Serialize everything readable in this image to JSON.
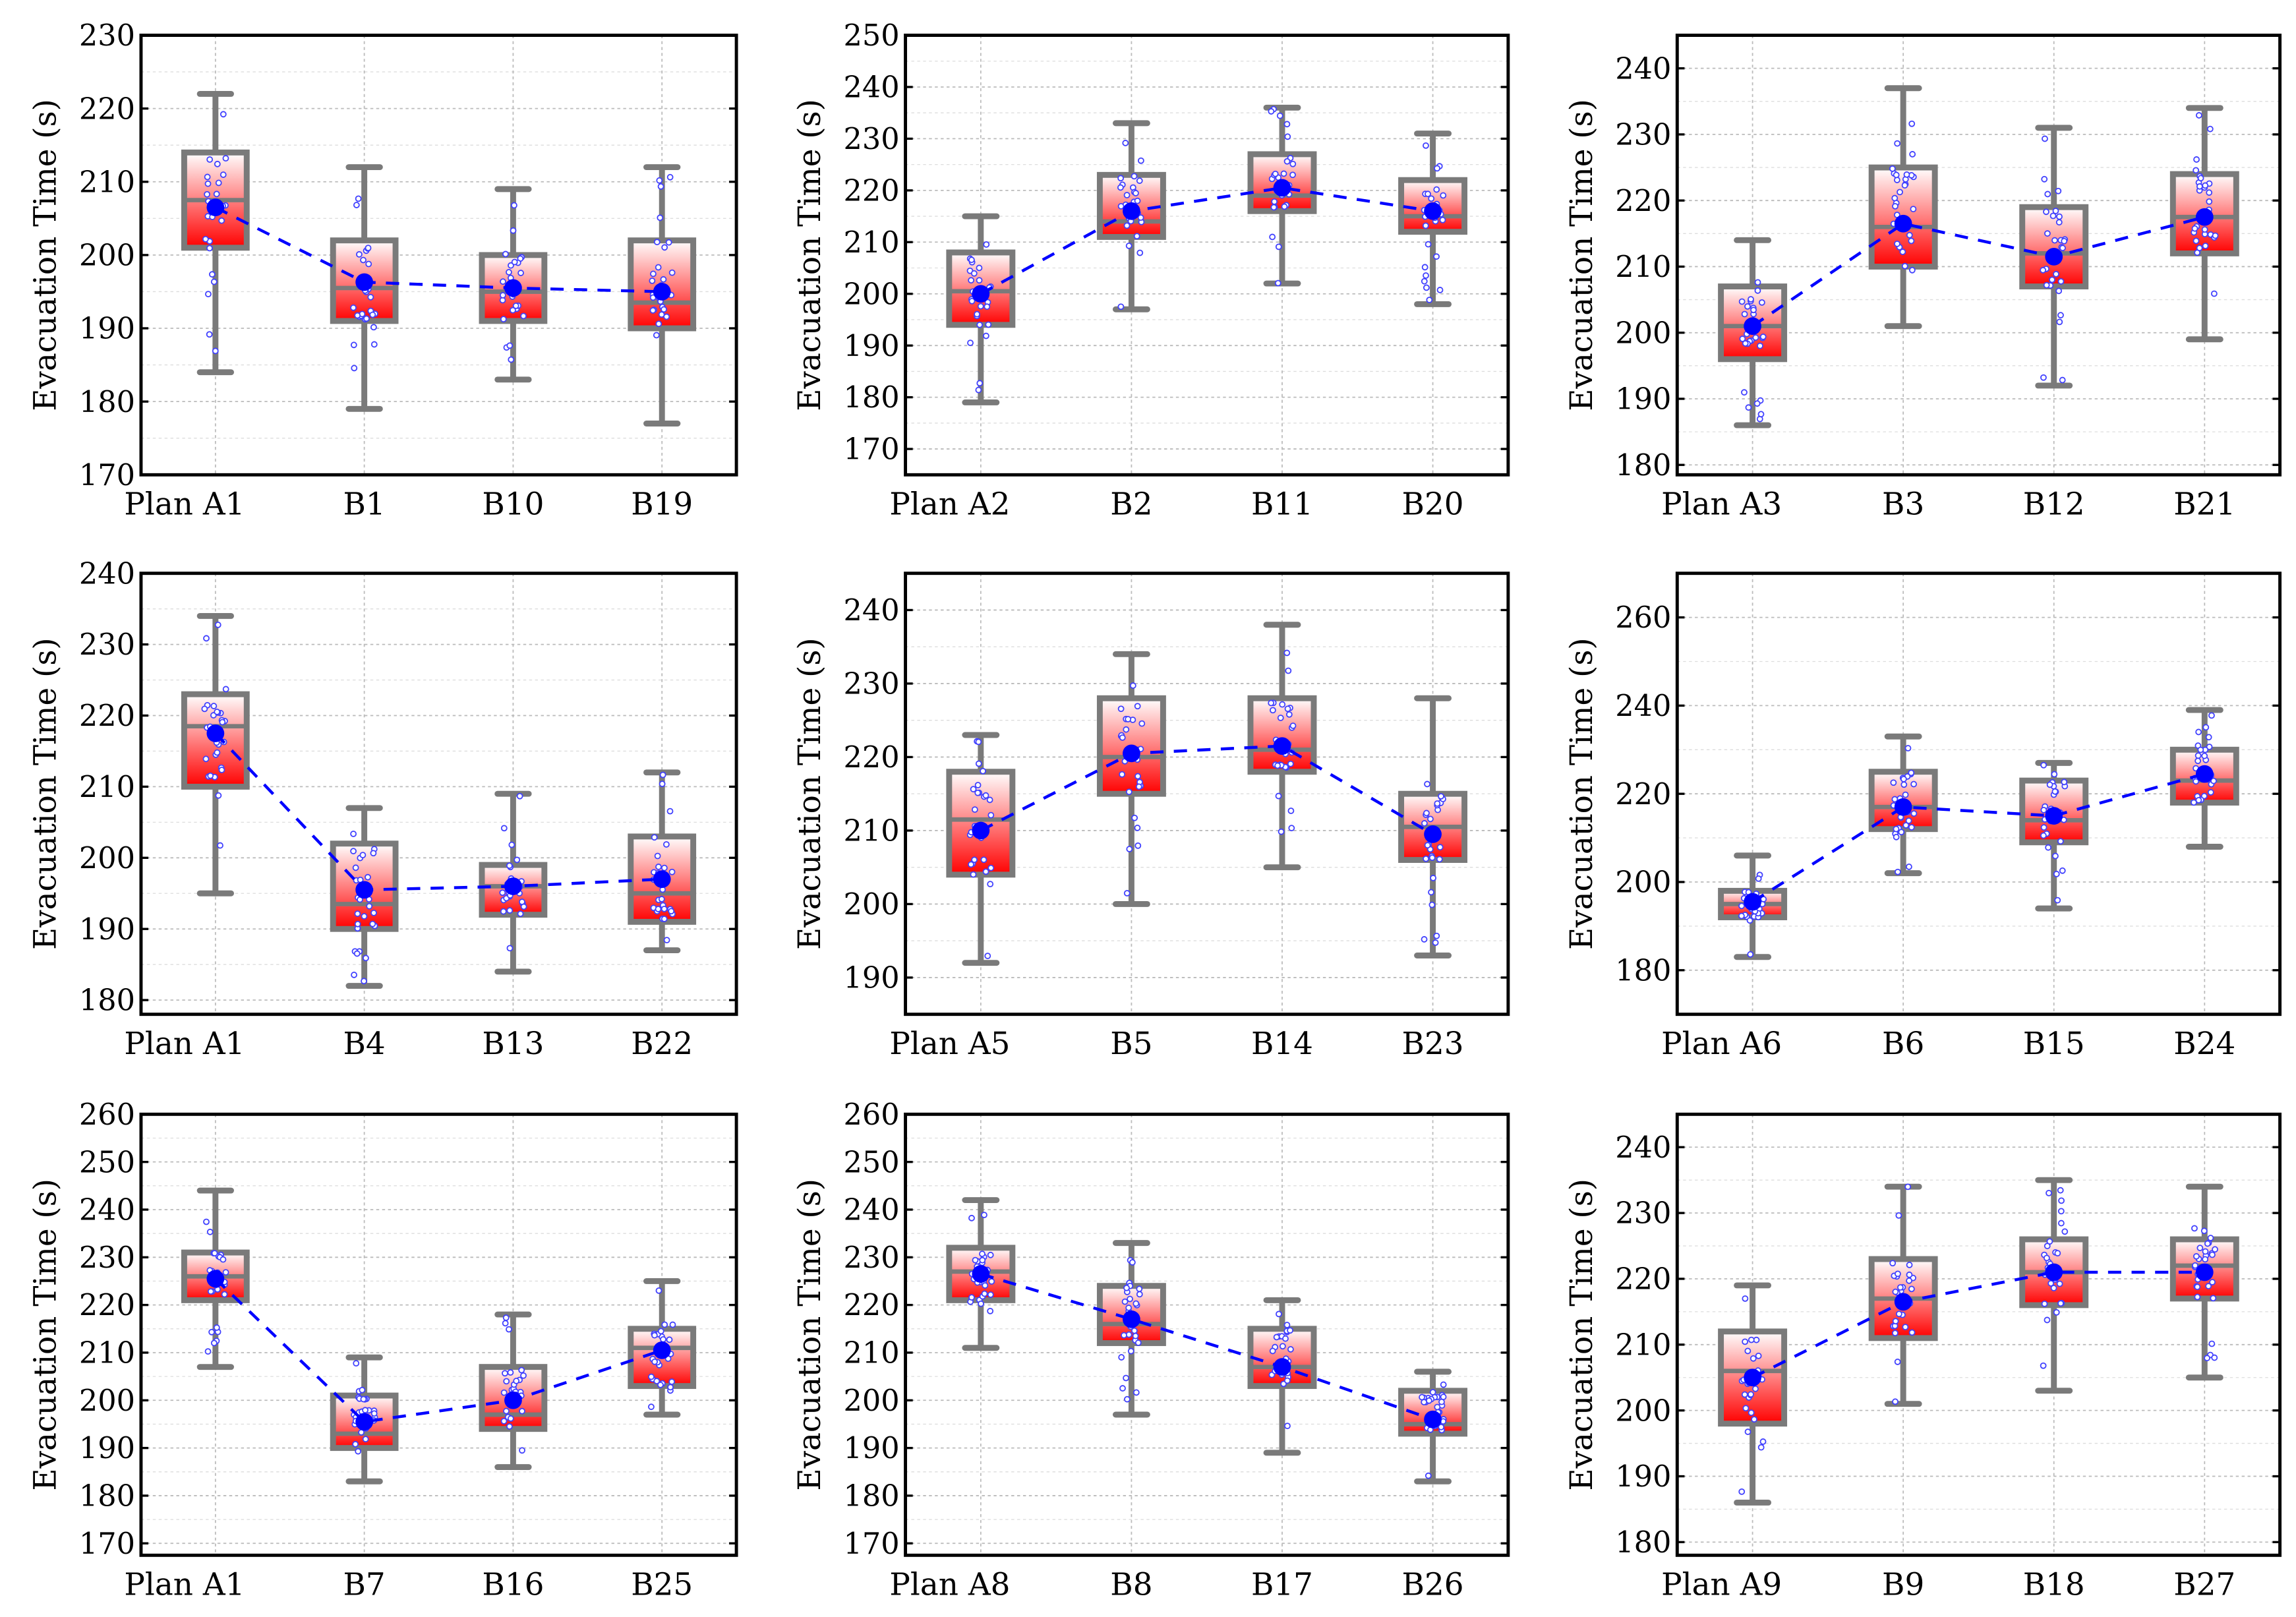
{
  "chart_data": [
    {
      "type": "box",
      "ylabel": "Evacuation Time (s)",
      "categories": [
        "Plan  A1",
        "B1",
        "B10",
        "B19"
      ],
      "ylim": [
        170,
        230
      ],
      "yticks": [
        170,
        180,
        190,
        200,
        210,
        220,
        230
      ],
      "boxes": [
        {
          "min": 184,
          "q1": 201,
          "median": 207.5,
          "q3": 214,
          "max": 222,
          "mean": 206.5
        },
        {
          "min": 179,
          "q1": 191,
          "median": 195.5,
          "q3": 202,
          "max": 212,
          "mean": 196.3
        },
        {
          "min": 183,
          "q1": 191,
          "median": 195,
          "q3": 200,
          "max": 209,
          "mean": 195.5
        },
        {
          "min": 177,
          "q1": 190,
          "median": 193.5,
          "q3": 202,
          "max": 212,
          "mean": 195
        }
      ]
    },
    {
      "type": "box",
      "ylabel": "Evacuation Time (s)",
      "categories": [
        "Plan A2",
        "B2",
        "B11",
        "B20"
      ],
      "ylim": [
        165,
        250
      ],
      "yticks": [
        170,
        180,
        190,
        200,
        210,
        220,
        230,
        240,
        250
      ],
      "boxes": [
        {
          "min": 179,
          "q1": 194,
          "median": 200.5,
          "q3": 208,
          "max": 215,
          "mean": 200
        },
        {
          "min": 197,
          "q1": 211,
          "median": 214,
          "q3": 223,
          "max": 233,
          "mean": 216
        },
        {
          "min": 202,
          "q1": 216,
          "median": 219,
          "q3": 227,
          "max": 236,
          "mean": 220.5
        },
        {
          "min": 198,
          "q1": 212,
          "median": 215,
          "q3": 222,
          "max": 231,
          "mean": 216
        }
      ]
    },
    {
      "type": "box",
      "ylabel": "Evacuation Time (s)",
      "categories": [
        "Plan A3",
        "B3",
        "B12",
        "B21"
      ],
      "ylim": [
        178.5,
        245
      ],
      "yticks": [
        180,
        190,
        200,
        210,
        220,
        230,
        240
      ],
      "boxes": [
        {
          "min": 186,
          "q1": 196,
          "median": 201,
          "q3": 207,
          "max": 214,
          "mean": 201
        },
        {
          "min": 201,
          "q1": 210,
          "median": 216,
          "q3": 225,
          "max": 237,
          "mean": 216.5
        },
        {
          "min": 192,
          "q1": 207,
          "median": 212,
          "q3": 219,
          "max": 231,
          "mean": 211.5
        },
        {
          "min": 199,
          "q1": 212,
          "median": 217.5,
          "q3": 224,
          "max": 234,
          "mean": 217.5
        }
      ]
    },
    {
      "type": "box",
      "ylabel": "Evacuation Time (s)",
      "categories": [
        "Plan  A1",
        "B4",
        "B13",
        "B22"
      ],
      "ylim": [
        178,
        240
      ],
      "yticks": [
        180,
        190,
        200,
        210,
        220,
        230,
        240
      ],
      "boxes": [
        {
          "min": 195,
          "q1": 210,
          "median": 218.5,
          "q3": 223,
          "max": 234,
          "mean": 217.5
        },
        {
          "min": 182,
          "q1": 190,
          "median": 193.5,
          "q3": 202,
          "max": 207,
          "mean": 195.5
        },
        {
          "min": 184,
          "q1": 192,
          "median": 196,
          "q3": 199,
          "max": 209,
          "mean": 196
        },
        {
          "min": 187,
          "q1": 191,
          "median": 195,
          "q3": 203,
          "max": 212,
          "mean": 197
        }
      ]
    },
    {
      "type": "box",
      "ylabel": "Evacuation Time (s)",
      "categories": [
        "Plan A5",
        "B5",
        "B14",
        "B23"
      ],
      "ylim": [
        185,
        245
      ],
      "yticks": [
        190,
        200,
        210,
        220,
        230,
        240
      ],
      "boxes": [
        {
          "min": 192,
          "q1": 204,
          "median": 211.5,
          "q3": 218,
          "max": 223,
          "mean": 210
        },
        {
          "min": 200,
          "q1": 215,
          "median": 220,
          "q3": 228,
          "max": 234,
          "mean": 220.5
        },
        {
          "min": 205,
          "q1": 218,
          "median": 221,
          "q3": 228,
          "max": 238,
          "mean": 221.5
        },
        {
          "min": 193,
          "q1": 206,
          "median": 210.5,
          "q3": 215,
          "max": 228,
          "mean": 209.5
        }
      ]
    },
    {
      "type": "box",
      "ylabel": "Evacuation Time (s)",
      "categories": [
        "Plan A6",
        "B6",
        "B15",
        "B24"
      ],
      "ylim": [
        170,
        270
      ],
      "yticks": [
        180,
        200,
        220,
        240,
        260
      ],
      "boxes": [
        {
          "min": 183,
          "q1": 192,
          "median": 195,
          "q3": 198,
          "max": 206,
          "mean": 195.5
        },
        {
          "min": 202,
          "q1": 212,
          "median": 217,
          "q3": 225,
          "max": 233,
          "mean": 217
        },
        {
          "min": 194,
          "q1": 209,
          "median": 214,
          "q3": 223,
          "max": 227,
          "mean": 215
        },
        {
          "min": 208,
          "q1": 218,
          "median": 223,
          "q3": 230,
          "max": 239,
          "mean": 224.5
        }
      ]
    },
    {
      "type": "box",
      "ylabel": "Evacuation Time (s)",
      "categories": [
        "Plan  A1",
        "B7",
        "B16",
        "B25"
      ],
      "ylim": [
        167.5,
        260
      ],
      "yticks": [
        170,
        180,
        190,
        200,
        210,
        220,
        230,
        240,
        250,
        260
      ],
      "boxes": [
        {
          "min": 207,
          "q1": 221,
          "median": 226,
          "q3": 231,
          "max": 244,
          "mean": 225.5
        },
        {
          "min": 183,
          "q1": 190,
          "median": 193,
          "q3": 201,
          "max": 209,
          "mean": 195.5
        },
        {
          "min": 186,
          "q1": 194,
          "median": 197,
          "q3": 207,
          "max": 218,
          "mean": 200
        },
        {
          "min": 197,
          "q1": 203,
          "median": 211,
          "q3": 215,
          "max": 225,
          "mean": 210.5
        }
      ]
    },
    {
      "type": "box",
      "ylabel": "Evacuation Time (s)",
      "categories": [
        "Plan A8",
        "B8",
        "B17",
        "B26"
      ],
      "ylim": [
        167.5,
        260
      ],
      "yticks": [
        170,
        180,
        190,
        200,
        210,
        220,
        230,
        240,
        250,
        260
      ],
      "boxes": [
        {
          "min": 211,
          "q1": 221,
          "median": 227,
          "q3": 232,
          "max": 242,
          "mean": 226.5
        },
        {
          "min": 197,
          "q1": 212,
          "median": 216,
          "q3": 224,
          "max": 233,
          "mean": 217
        },
        {
          "min": 189,
          "q1": 203,
          "median": 207,
          "q3": 215,
          "max": 221,
          "mean": 207
        },
        {
          "min": 183,
          "q1": 193,
          "median": 195,
          "q3": 202,
          "max": 206,
          "mean": 196
        }
      ]
    },
    {
      "type": "box",
      "ylabel": "Evacuation Time (s)",
      "categories": [
        "Plan A9",
        "B9",
        "B18",
        "B27"
      ],
      "ylim": [
        178,
        245
      ],
      "yticks": [
        180,
        190,
        200,
        210,
        220,
        230,
        240
      ],
      "boxes": [
        {
          "min": 186,
          "q1": 198,
          "median": 206,
          "q3": 212,
          "max": 219,
          "mean": 205
        },
        {
          "min": 201,
          "q1": 211,
          "median": 217,
          "q3": 223,
          "max": 234,
          "mean": 216.5
        },
        {
          "min": 203,
          "q1": 216,
          "median": 221,
          "q3": 226,
          "max": 235,
          "mean": 221
        },
        {
          "min": 205,
          "q1": 217,
          "median": 222,
          "q3": 226,
          "max": 234,
          "mean": 221
        }
      ]
    }
  ],
  "colors": {
    "box": "#7a7a7a",
    "fill_bottom": "#ff0000",
    "fill_top": "#ffffff",
    "mean": "#0000ff",
    "points": "#4040ff"
  }
}
